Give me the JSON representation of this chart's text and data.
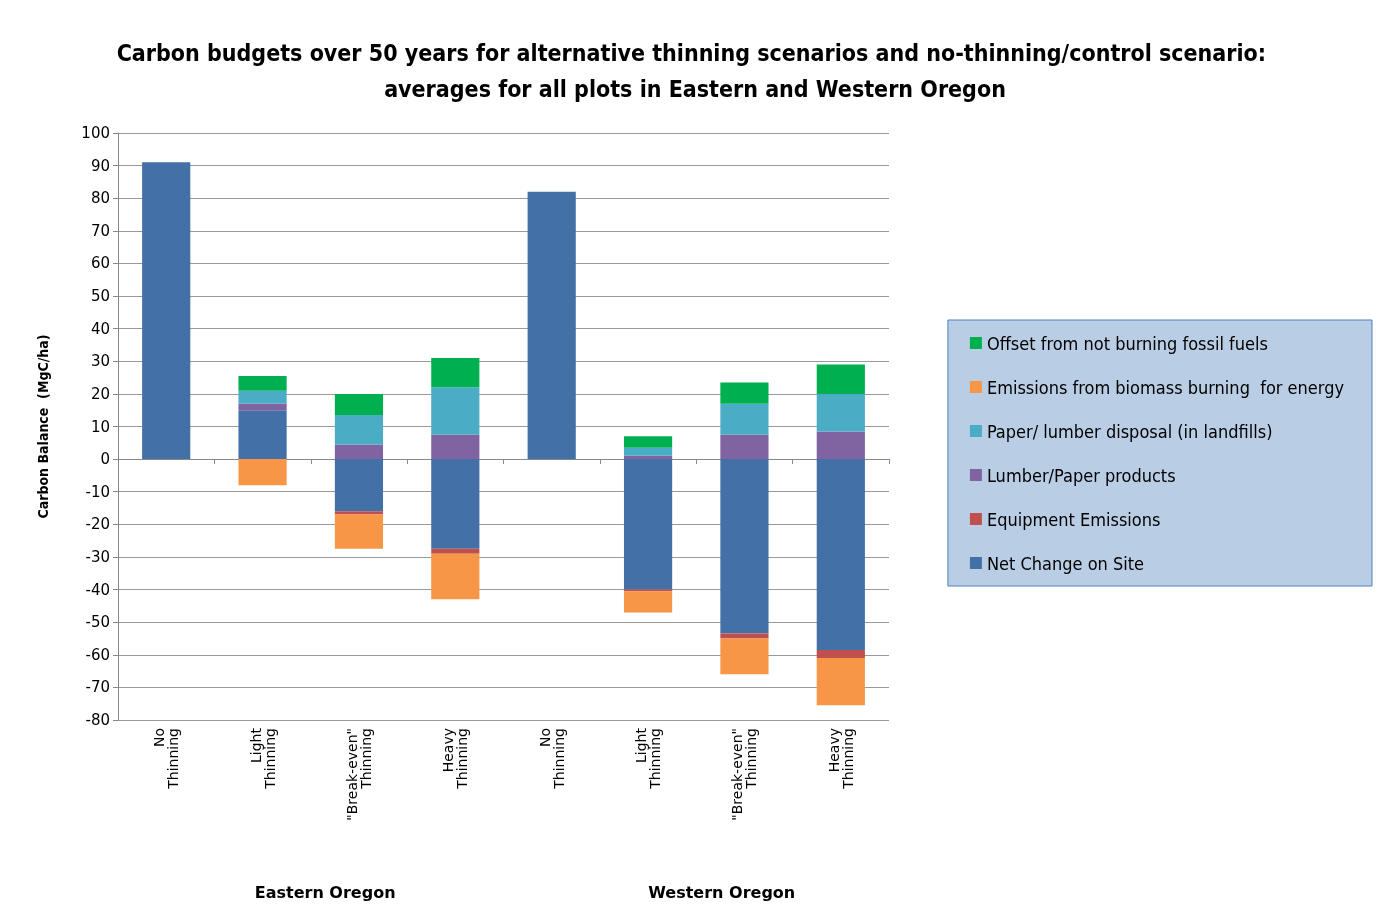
{
  "chart_data": {
    "type": "bar",
    "title": "Carbon budgets over 50 years for alternative thinning scenarios and no-thinning/control scenario: averages for all plots in Eastern and Western Oregon",
    "ylabel": "Carbon Balance  (MgC/ha)",
    "annotations": [
      "Eastern Oregon",
      "Western Oregon"
    ],
    "categories": [
      "No Thinning",
      "Light Thinning",
      "\"Break-even\" Thinning",
      "Heavy Thinning",
      "No Thinning",
      "Light Thinning",
      "\"Break-even\" Thinning",
      "Heavy Thinning"
    ],
    "stacked": true,
    "series": [
      {
        "name": "Net Change on Site",
        "color": "#4470a8",
        "values": [
          91,
          15,
          -16,
          -27.5,
          82,
          -40,
          -53.5,
          -58.5
        ]
      },
      {
        "name": "Equipment Emissions",
        "color": "#c0504d",
        "values": [
          0,
          0,
          -1,
          -1.5,
          0,
          -0.5,
          -1.5,
          -2.5
        ]
      },
      {
        "name": "Lumber/Paper products",
        "color": "#8064a2",
        "values": [
          0,
          2,
          4.5,
          7.5,
          0,
          1,
          7.5,
          8.5
        ]
      },
      {
        "name": "Paper/ lumber disposal (in landfills)",
        "color": "#4bacc6",
        "values": [
          0,
          4,
          9,
          14.5,
          0,
          2.5,
          9.5,
          11.5
        ]
      },
      {
        "name": "Emissions from biomass burning  for energy",
        "color": "#f79646",
        "values": [
          0,
          -8,
          -10.5,
          -14,
          0,
          -6.5,
          -11,
          -14.5
        ]
      },
      {
        "name": "Offset from not burning fossil fuels",
        "color": "#00b050",
        "values": [
          0,
          4.5,
          6.5,
          9,
          0,
          3.5,
          6.5,
          9
        ]
      }
    ],
    "ylim": [
      -80,
      100
    ],
    "yticks": [
      -80,
      -70,
      -60,
      -50,
      -40,
      -30,
      -20,
      -10,
      0,
      10,
      20,
      30,
      40,
      50,
      60,
      70,
      80,
      90,
      100
    ],
    "grid": "y",
    "legend": "right"
  }
}
